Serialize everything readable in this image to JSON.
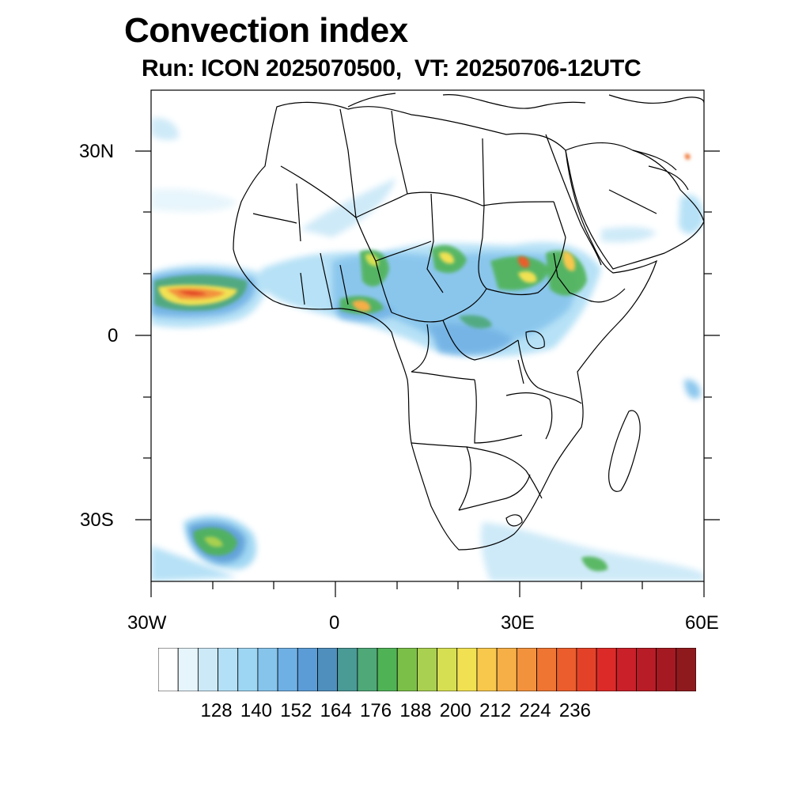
{
  "title": "Convection index",
  "subtitle": "Run: ICON 2025070500,  VT: 20250706-12UTC",
  "map": {
    "type": "filled-contour map",
    "region": "Africa",
    "lat_range": [
      -40,
      40
    ],
    "lon_range": [
      -30,
      60
    ],
    "lat_labels": [
      "30N",
      "0",
      "30S"
    ],
    "lon_labels": [
      "30W",
      "0",
      "30E",
      "60E"
    ]
  },
  "colorbar": {
    "labels": [
      "128",
      "140",
      "152",
      "164",
      "176",
      "188",
      "200",
      "212",
      "224",
      "236"
    ],
    "colors": [
      "#ffffff",
      "#e6f5fc",
      "#cce9f8",
      "#b3e0f6",
      "#9dd6f3",
      "#86c4ec",
      "#6fb0e4",
      "#5b9cd6",
      "#4f8fbd",
      "#4a9a96",
      "#4ea878",
      "#4fb356",
      "#7bbf48",
      "#a9d050",
      "#d6df52",
      "#f1e152",
      "#f8c84d",
      "#f6ae46",
      "#f3923d",
      "#ef7532",
      "#eb5d2c",
      "#e44228",
      "#dc2a28",
      "#c9202a",
      "#b81c26",
      "#a51a22",
      "#8f1a1e"
    ]
  },
  "chart_data": {
    "type": "heatmap",
    "title": "Convection index",
    "subtitle": "Run: ICON 2025070500,  VT: 20250706-12UTC",
    "xlim": [
      -30,
      60
    ],
    "ylim": [
      -40,
      40
    ],
    "colorbar_ticks": [
      128,
      140,
      152,
      164,
      176,
      188,
      200,
      212,
      224,
      236
    ]
  }
}
